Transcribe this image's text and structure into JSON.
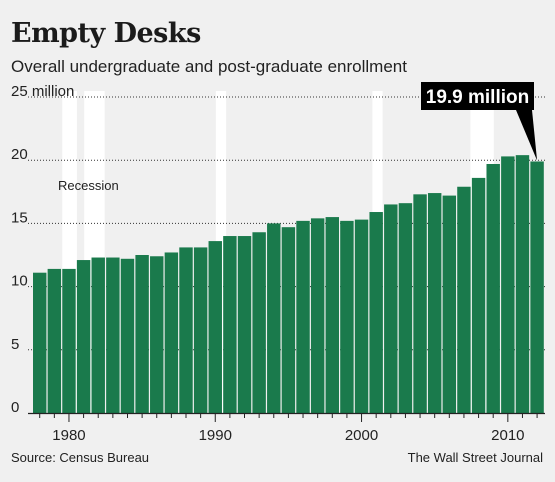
{
  "header": {
    "title": "Empty Desks",
    "subtitle": "Overall undergraduate and post-graduate enrollment"
  },
  "footer": {
    "source": "Source: Census Bureau",
    "credit": "The Wall Street Journal"
  },
  "colors": {
    "bar": "#1a7a4c",
    "background": "#f0f0f0",
    "recession_band": "#ffffff",
    "callout_bg": "#000000",
    "callout_text": "#ffffff"
  },
  "chart_data": {
    "type": "bar",
    "title": "Empty Desks",
    "subtitle": "Overall undergraduate and post-graduate enrollment",
    "xlabel": "",
    "ylabel": "",
    "ylim": [
      0,
      25
    ],
    "yticks": [
      0,
      5,
      10,
      15,
      20,
      25
    ],
    "ytick_labels": [
      "0",
      "5",
      "10",
      "15",
      "20",
      "25 million"
    ],
    "xticks": [
      1980,
      1990,
      2000,
      2010
    ],
    "xtick_labels": [
      "1980",
      "1990",
      "2000",
      "2010"
    ],
    "grid": "dotted horizontal",
    "recession_label": "Recession",
    "recessions": [
      [
        1980,
        1981
      ],
      [
        1981.5,
        1982.9
      ],
      [
        1990.5,
        1991.2
      ],
      [
        2001.2,
        2001.9
      ],
      [
        2007.9,
        2009.5
      ]
    ],
    "callout": "19.9 million",
    "series": [
      {
        "years": [
          1978,
          1979,
          1980,
          1981,
          1982,
          1983,
          1984,
          1985,
          1986,
          1987,
          1988,
          1989,
          1990,
          1991,
          1992,
          1993,
          1994,
          1995,
          1996,
          1997,
          1998,
          1999,
          2000,
          2001,
          2002,
          2003,
          2004,
          2005,
          2006,
          2007,
          2008,
          2009,
          2010,
          2011,
          2012
        ],
        "values": [
          11.1,
          11.4,
          11.4,
          12.1,
          12.3,
          12.3,
          12.2,
          12.5,
          12.4,
          12.7,
          13.1,
          13.1,
          13.6,
          14.0,
          14.0,
          14.3,
          15.0,
          14.7,
          15.2,
          15.4,
          15.5,
          15.2,
          15.3,
          15.9,
          16.5,
          16.6,
          17.3,
          17.4,
          17.2,
          17.9,
          18.6,
          19.7,
          20.3,
          20.4,
          19.9
        ]
      }
    ]
  }
}
